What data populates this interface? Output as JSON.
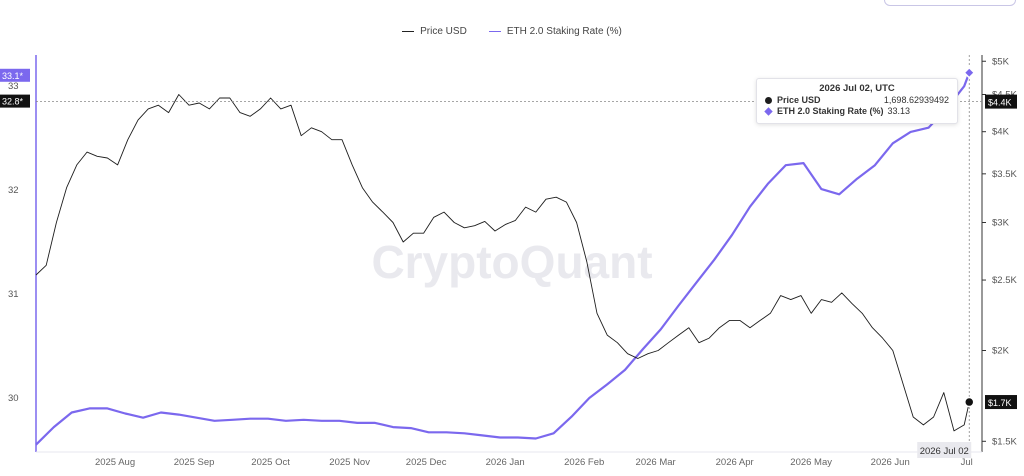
{
  "legend": {
    "price_label": "Price USD",
    "staking_label": "ETH 2.0 Staking Rate (%)"
  },
  "watermark": "CryptoQuant",
  "colors": {
    "price": "#1e1e1e",
    "staking": "#7b68ee",
    "crosshair": "#888888",
    "grid": "#e7e7ef"
  },
  "tooltip": {
    "date": "2026 Jul 02, UTC",
    "price_label": "Price USD",
    "price_value": "1,698.62939492",
    "staking_label": "ETH 2.0 Staking Rate (%)",
    "staking_value": "33.13"
  },
  "left_badges": {
    "top": "33.1*",
    "crosshair": "32.8*"
  },
  "right_badges": {
    "crosshair": "$4.4K",
    "price": "$1.7K"
  },
  "x_crosshair_label": "2026 Jul 02",
  "chart_data": {
    "type": "line",
    "x_ticks": [
      "2025 Aug",
      "2025 Sep",
      "2025 Oct",
      "2025 Nov",
      "2025 Dec",
      "2026 Jan",
      "2026 Feb",
      "2026 Mar",
      "2026 Apr",
      "2026 May",
      "2026 Jun",
      "Jul"
    ],
    "y_left": {
      "ticks": [
        "33",
        "32",
        "31",
        "30"
      ],
      "range": [
        29.48,
        33.3
      ]
    },
    "y_right": {
      "scale": "log",
      "ticks": [
        "$5K",
        "$4.5K",
        "$4K",
        "$3.5K",
        "$3K",
        "$2.5K",
        "$2K",
        "$1.5K"
      ],
      "range": [
        1450,
        5100
      ]
    },
    "series": [
      {
        "name": "Price USD",
        "axis": "right",
        "x": [
          "2025-07-01",
          "2025-07-05",
          "2025-07-09",
          "2025-07-13",
          "2025-07-17",
          "2025-07-21",
          "2025-07-25",
          "2025-07-29",
          "2025-08-02",
          "2025-08-06",
          "2025-08-10",
          "2025-08-14",
          "2025-08-18",
          "2025-08-22",
          "2025-08-26",
          "2025-08-30",
          "2025-09-03",
          "2025-09-07",
          "2025-09-11",
          "2025-09-15",
          "2025-09-19",
          "2025-09-23",
          "2025-09-27",
          "2025-10-01",
          "2025-10-05",
          "2025-10-09",
          "2025-10-13",
          "2025-10-17",
          "2025-10-21",
          "2025-10-25",
          "2025-10-29",
          "2025-11-02",
          "2025-11-06",
          "2025-11-10",
          "2025-11-14",
          "2025-11-18",
          "2025-11-22",
          "2025-11-26",
          "2025-11-30",
          "2025-12-04",
          "2025-12-08",
          "2025-12-12",
          "2025-12-16",
          "2025-12-20",
          "2025-12-24",
          "2025-12-28",
          "2026-01-01",
          "2026-01-05",
          "2026-01-09",
          "2026-01-13",
          "2026-01-17",
          "2026-01-21",
          "2026-01-25",
          "2026-01-29",
          "2026-02-02",
          "2026-02-06",
          "2026-02-10",
          "2026-02-14",
          "2026-02-18",
          "2026-02-22",
          "2026-02-26",
          "2026-03-02",
          "2026-03-06",
          "2026-03-10",
          "2026-03-14",
          "2026-03-18",
          "2026-03-22",
          "2026-03-26",
          "2026-03-30",
          "2026-04-03",
          "2026-04-07",
          "2026-04-11",
          "2026-04-15",
          "2026-04-19",
          "2026-04-23",
          "2026-04-27",
          "2026-05-01",
          "2026-05-05",
          "2026-05-09",
          "2026-05-13",
          "2026-05-17",
          "2026-05-21",
          "2026-05-25",
          "2026-05-29",
          "2026-06-02",
          "2026-06-06",
          "2026-06-10",
          "2026-06-14",
          "2026-06-18",
          "2026-06-22",
          "2026-06-26",
          "2026-06-30",
          "2026-07-02"
        ],
        "values": [
          2540,
          2620,
          3000,
          3350,
          3600,
          3750,
          3700,
          3680,
          3600,
          3900,
          4150,
          4300,
          4350,
          4250,
          4500,
          4350,
          4380,
          4300,
          4450,
          4450,
          4250,
          4200,
          4300,
          4450,
          4300,
          4350,
          3950,
          4050,
          4000,
          3900,
          3900,
          3600,
          3350,
          3200,
          3100,
          3000,
          2820,
          2900,
          2900,
          3050,
          3100,
          3000,
          2950,
          2970,
          3010,
          2920,
          2980,
          3020,
          3150,
          3100,
          3230,
          3250,
          3200,
          3000,
          2650,
          2250,
          2100,
          2050,
          1980,
          1950,
          1980,
          2000,
          2050,
          2100,
          2150,
          2050,
          2080,
          2150,
          2200,
          2200,
          2150,
          2200,
          2250,
          2380,
          2350,
          2380,
          2250,
          2350,
          2330,
          2400,
          2320,
          2250,
          2150,
          2080,
          2000,
          1800,
          1620,
          1580,
          1620,
          1750,
          1550,
          1580,
          1698.63
        ]
      },
      {
        "name": "ETH 2.0 Staking Rate (%)",
        "axis": "left",
        "x": [
          "2025-07-01",
          "2025-07-08",
          "2025-07-15",
          "2025-07-22",
          "2025-07-29",
          "2025-08-05",
          "2025-08-12",
          "2025-08-19",
          "2025-08-26",
          "2025-09-02",
          "2025-09-09",
          "2025-09-16",
          "2025-09-23",
          "2025-09-30",
          "2025-10-07",
          "2025-10-14",
          "2025-10-21",
          "2025-10-28",
          "2025-11-04",
          "2025-11-11",
          "2025-11-18",
          "2025-11-25",
          "2025-12-02",
          "2025-12-09",
          "2025-12-16",
          "2025-12-23",
          "2025-12-30",
          "2026-01-06",
          "2026-01-13",
          "2026-01-20",
          "2026-01-27",
          "2026-02-03",
          "2026-02-10",
          "2026-02-17",
          "2026-02-24",
          "2026-03-03",
          "2026-03-10",
          "2026-03-17",
          "2026-03-24",
          "2026-03-31",
          "2026-04-07",
          "2026-04-14",
          "2026-04-21",
          "2026-04-28",
          "2026-05-05",
          "2026-05-12",
          "2026-05-19",
          "2026-05-26",
          "2026-06-02",
          "2026-06-09",
          "2026-06-16",
          "2026-06-23",
          "2026-06-30",
          "2026-07-02"
        ],
        "values": [
          29.55,
          29.72,
          29.86,
          29.9,
          29.9,
          29.85,
          29.81,
          29.86,
          29.84,
          29.81,
          29.78,
          29.79,
          29.8,
          29.8,
          29.78,
          29.79,
          29.78,
          29.78,
          29.76,
          29.76,
          29.72,
          29.71,
          29.67,
          29.67,
          29.66,
          29.64,
          29.62,
          29.62,
          29.61,
          29.66,
          29.82,
          30.0,
          30.13,
          30.27,
          30.47,
          30.66,
          30.89,
          31.11,
          31.33,
          31.57,
          31.84,
          32.06,
          32.24,
          32.26,
          32.01,
          31.96,
          32.11,
          32.24,
          32.45,
          32.56,
          32.6,
          32.78,
          33.0,
          33.13
        ]
      }
    ]
  }
}
